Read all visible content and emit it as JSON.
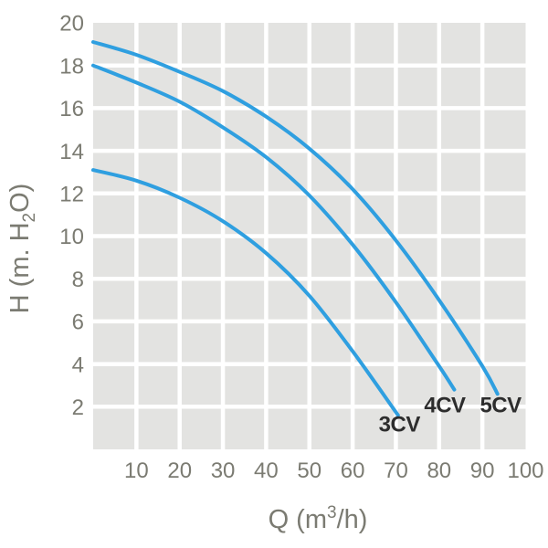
{
  "chart_data": {
    "type": "line",
    "title": "",
    "description": "Pump performance curves: head H (m. H2O) versus flow Q (m3/h) for 3CV, 4CV and 5CV pumps",
    "x_axis": {
      "label_text": "Q (m3/h)",
      "label_parts": [
        {
          "text": "Q (m"
        },
        {
          "text": "3",
          "shift": "super"
        },
        {
          "text": "/h)"
        }
      ],
      "ticks": [
        10,
        20,
        30,
        40,
        50,
        60,
        70,
        80,
        90,
        100
      ],
      "range": [
        0,
        100
      ],
      "gridlines": true
    },
    "y_axis": {
      "label_text": "H (m. H2O)",
      "label_parts": [
        {
          "text": "H (m. H"
        },
        {
          "text": "2",
          "shift": "sub"
        },
        {
          "text": "O)"
        }
      ],
      "ticks": [
        2,
        4,
        6,
        8,
        10,
        12,
        14,
        16,
        18,
        20
      ],
      "range": [
        0,
        20
      ],
      "gridlines": true
    },
    "legend": "inline-curve-labels",
    "series": [
      {
        "name": "3CV",
        "points": [
          [
            0,
            13.1
          ],
          [
            10,
            12.6
          ],
          [
            20,
            11.8
          ],
          [
            30,
            10.7
          ],
          [
            40,
            9.2
          ],
          [
            50,
            7.2
          ],
          [
            60,
            4.6
          ],
          [
            70.5,
            1.6
          ]
        ],
        "label_pos": [
          70.8,
          1.2
        ]
      },
      {
        "name": "4CV",
        "points": [
          [
            0,
            18.0
          ],
          [
            10,
            17.2
          ],
          [
            20,
            16.3
          ],
          [
            30,
            15.1
          ],
          [
            40,
            13.7
          ],
          [
            50,
            11.9
          ],
          [
            60,
            9.6
          ],
          [
            70,
            6.9
          ],
          [
            80,
            3.9
          ],
          [
            83.5,
            2.8
          ]
        ],
        "label_pos": [
          81.3,
          2.1
        ]
      },
      {
        "name": "5CV",
        "points": [
          [
            0,
            19.1
          ],
          [
            10,
            18.5
          ],
          [
            20,
            17.7
          ],
          [
            30,
            16.8
          ],
          [
            40,
            15.6
          ],
          [
            50,
            14.1
          ],
          [
            60,
            12.2
          ],
          [
            70,
            9.8
          ],
          [
            80,
            7.0
          ],
          [
            90,
            3.9
          ],
          [
            93.5,
            2.6
          ]
        ],
        "label_pos": [
          94.2,
          2.1
        ]
      }
    ],
    "colors": {
      "curve": "#2f9fe0",
      "grid_cell": "#e3e3e1",
      "grid_line": "#ffffff",
      "tick_text": "#7b7b72",
      "axis_title_text": "#7b7b72",
      "series_label_text": "#2d2d2d",
      "background": "#ffffff"
    }
  }
}
